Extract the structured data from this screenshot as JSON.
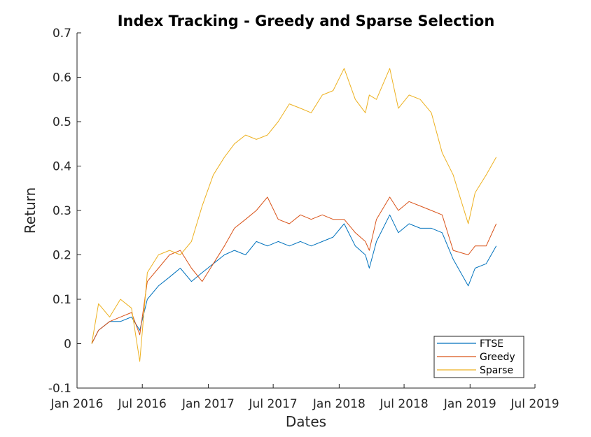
{
  "chart_data": {
    "type": "line",
    "title": "Index Tracking - Greedy and Sparse Selection",
    "xlabel": "Dates",
    "ylabel": "Return",
    "xlim": [
      "2016-01-01",
      "2019-07-01"
    ],
    "ylim": [
      -0.1,
      0.7
    ],
    "x_ticks": [
      "2016-01-01",
      "2016-07-01",
      "2017-01-01",
      "2017-07-01",
      "2018-01-01",
      "2018-07-01",
      "2019-01-01",
      "2019-07-01"
    ],
    "x_tick_labels": [
      "Jan 2016",
      "Jul 2016",
      "Jan 2017",
      "Jul 2017",
      "Jan 2018",
      "Jul 2018",
      "Jan 2019",
      "Jul 2019"
    ],
    "y_ticks": [
      -0.1,
      0,
      0.1,
      0.2,
      0.3,
      0.4,
      0.5,
      0.6,
      0.7
    ],
    "y_tick_labels": [
      "-0.1",
      "0",
      "0.1",
      "0.2",
      "0.3",
      "0.4",
      "0.5",
      "0.6",
      "0.7"
    ],
    "grid": false,
    "legend_position": "bottom-right",
    "series": [
      {
        "name": "FTSE",
        "color": "#0072BD",
        "x": [
          "2016-02-11",
          "2016-03-01",
          "2016-04-01",
          "2016-05-01",
          "2016-06-01",
          "2016-06-24",
          "2016-07-15",
          "2016-08-15",
          "2016-09-15",
          "2016-10-15",
          "2016-11-15",
          "2016-12-15",
          "2017-01-15",
          "2017-02-15",
          "2017-03-15",
          "2017-04-15",
          "2017-05-15",
          "2017-06-15",
          "2017-07-15",
          "2017-08-15",
          "2017-09-15",
          "2017-10-15",
          "2017-11-15",
          "2017-12-15",
          "2018-01-15",
          "2018-02-15",
          "2018-03-15",
          "2018-03-26",
          "2018-04-15",
          "2018-05-22",
          "2018-06-15",
          "2018-07-15",
          "2018-08-15",
          "2018-09-15",
          "2018-10-15",
          "2018-11-15",
          "2018-12-27",
          "2019-01-15",
          "2019-02-15",
          "2019-03-15"
        ],
        "values": [
          0.0,
          0.03,
          0.05,
          0.05,
          0.06,
          0.03,
          0.1,
          0.13,
          0.15,
          0.17,
          0.14,
          0.16,
          0.18,
          0.2,
          0.21,
          0.2,
          0.23,
          0.22,
          0.23,
          0.22,
          0.23,
          0.22,
          0.23,
          0.24,
          0.27,
          0.22,
          0.2,
          0.17,
          0.23,
          0.29,
          0.25,
          0.27,
          0.26,
          0.26,
          0.25,
          0.19,
          0.13,
          0.17,
          0.18,
          0.22
        ]
      },
      {
        "name": "Greedy",
        "color": "#D95319",
        "x": [
          "2016-02-11",
          "2016-03-01",
          "2016-04-01",
          "2016-05-01",
          "2016-06-01",
          "2016-06-24",
          "2016-07-15",
          "2016-08-15",
          "2016-09-15",
          "2016-10-15",
          "2016-11-15",
          "2016-12-15",
          "2017-01-15",
          "2017-02-15",
          "2017-03-15",
          "2017-04-15",
          "2017-05-15",
          "2017-06-15",
          "2017-07-15",
          "2017-08-15",
          "2017-09-15",
          "2017-10-15",
          "2017-11-15",
          "2017-12-15",
          "2018-01-15",
          "2018-02-15",
          "2018-03-15",
          "2018-03-26",
          "2018-04-15",
          "2018-05-22",
          "2018-06-15",
          "2018-07-15",
          "2018-08-15",
          "2018-09-15",
          "2018-10-15",
          "2018-11-15",
          "2018-12-27",
          "2019-01-15",
          "2019-02-15",
          "2019-03-15"
        ],
        "values": [
          0.0,
          0.03,
          0.05,
          0.06,
          0.07,
          0.02,
          0.14,
          0.17,
          0.2,
          0.21,
          0.17,
          0.14,
          0.18,
          0.22,
          0.26,
          0.28,
          0.3,
          0.33,
          0.28,
          0.27,
          0.29,
          0.28,
          0.29,
          0.28,
          0.28,
          0.25,
          0.23,
          0.21,
          0.28,
          0.33,
          0.3,
          0.32,
          0.31,
          0.3,
          0.29,
          0.21,
          0.2,
          0.22,
          0.22,
          0.27
        ]
      },
      {
        "name": "Sparse",
        "color": "#EDB120",
        "x": [
          "2016-02-11",
          "2016-03-01",
          "2016-04-01",
          "2016-05-01",
          "2016-06-01",
          "2016-06-24",
          "2016-07-15",
          "2016-08-15",
          "2016-09-15",
          "2016-10-15",
          "2016-11-15",
          "2016-12-15",
          "2017-01-15",
          "2017-02-15",
          "2017-03-15",
          "2017-04-15",
          "2017-05-15",
          "2017-06-15",
          "2017-07-15",
          "2017-08-15",
          "2017-09-15",
          "2017-10-15",
          "2017-11-15",
          "2017-12-15",
          "2018-01-15",
          "2018-02-15",
          "2018-03-15",
          "2018-03-26",
          "2018-04-15",
          "2018-05-22",
          "2018-06-15",
          "2018-07-15",
          "2018-08-15",
          "2018-09-15",
          "2018-10-15",
          "2018-11-15",
          "2018-12-27",
          "2019-01-15",
          "2019-02-15",
          "2019-03-15"
        ],
        "values": [
          0.0,
          0.09,
          0.06,
          0.1,
          0.08,
          -0.04,
          0.16,
          0.2,
          0.21,
          0.2,
          0.23,
          0.31,
          0.38,
          0.42,
          0.45,
          0.47,
          0.46,
          0.47,
          0.5,
          0.54,
          0.53,
          0.52,
          0.56,
          0.57,
          0.62,
          0.55,
          0.52,
          0.56,
          0.55,
          0.62,
          0.53,
          0.56,
          0.55,
          0.52,
          0.43,
          0.38,
          0.27,
          0.34,
          0.38,
          0.42
        ]
      }
    ]
  }
}
